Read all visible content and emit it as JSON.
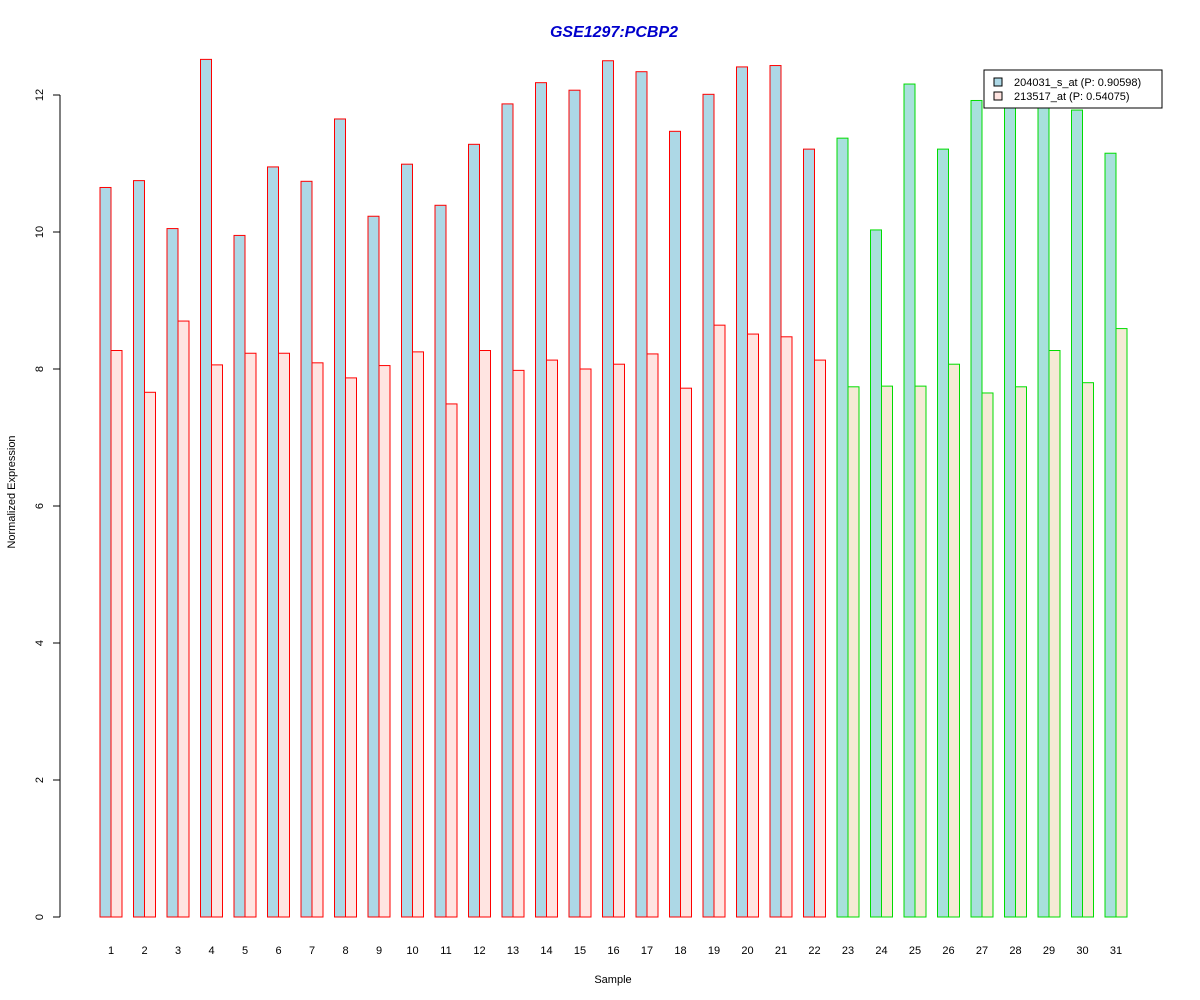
{
  "chart_data": {
    "type": "bar",
    "title": "GSE1297:PCBP2",
    "xlabel": "Sample",
    "ylabel": "Normalized Expression",
    "ylim": [
      0,
      12.5
    ],
    "yticks": [
      0,
      2,
      4,
      6,
      8,
      10,
      12
    ],
    "categories": [
      "1",
      "2",
      "3",
      "4",
      "5",
      "6",
      "7",
      "8",
      "9",
      "10",
      "11",
      "12",
      "13",
      "14",
      "15",
      "16",
      "17",
      "18",
      "19",
      "20",
      "21",
      "22",
      "23",
      "24",
      "25",
      "26",
      "27",
      "28",
      "29",
      "30",
      "31"
    ],
    "series": [
      {
        "name": "204031_s_at (P: 0.90598)",
        "values": [
          10.65,
          10.75,
          10.05,
          12.52,
          9.95,
          10.95,
          10.74,
          11.65,
          10.23,
          10.99,
          10.39,
          11.28,
          11.87,
          12.18,
          12.07,
          12.5,
          12.34,
          11.47,
          12.01,
          12.41,
          12.43,
          11.21,
          11.37,
          10.03,
          12.16,
          11.21,
          11.92,
          11.86,
          11.86,
          11.78,
          11.15
        ],
        "fill_group_a": "#add8e6",
        "fill_group_b": "#a8e0dc"
      },
      {
        "name": "213517_at (P: 0.54075)",
        "values": [
          8.27,
          7.66,
          8.7,
          8.06,
          8.23,
          8.23,
          8.09,
          7.87,
          8.05,
          8.25,
          7.49,
          8.27,
          7.98,
          8.13,
          8.0,
          8.07,
          8.22,
          7.72,
          8.64,
          8.51,
          8.47,
          8.13,
          7.74,
          7.75,
          7.75,
          8.07,
          7.65,
          7.74,
          8.27,
          7.8,
          8.59
        ],
        "fill_group_a": "#ffe4e1",
        "fill_group_b": "#f5ead5"
      }
    ],
    "group_a_count": 22,
    "border_group_a": "#ff0000",
    "border_group_b": "#00dd00",
    "title_color": "#0000cc",
    "grid": false,
    "legend_position": "top-right"
  }
}
